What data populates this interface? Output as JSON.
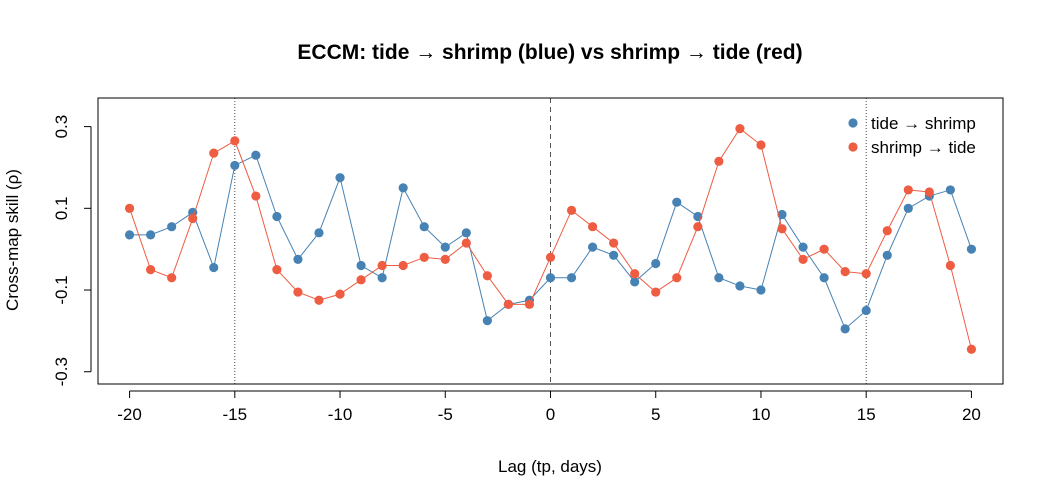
{
  "chart_data": {
    "type": "line",
    "title": "ECCM: tide → shrimp (blue) vs shrimp → tide (red)",
    "xlabel": "Lag (tp, days)",
    "ylabel": "Cross-map skill (ρ)",
    "xlim": [
      -21.5,
      21.5
    ],
    "ylim": [
      -0.33,
      0.37
    ],
    "xticks": [
      -20,
      -15,
      -10,
      -5,
      0,
      5,
      10,
      15,
      20
    ],
    "xtick_labels": [
      "-20",
      "-15",
      "-10",
      "-5",
      "0",
      "5",
      "10",
      "15",
      "20"
    ],
    "yticks": [
      -0.3,
      -0.1,
      0.1,
      0.3
    ],
    "ytick_labels": [
      "-0.3",
      "-0.1",
      "0.1",
      "0.3"
    ],
    "grid": false,
    "legend_position": "top-right",
    "reference_lines": [
      {
        "x": -15,
        "style": "dotted"
      },
      {
        "x": 0,
        "style": "dashed"
      },
      {
        "x": 15,
        "style": "dotted"
      }
    ],
    "x": [
      -20,
      -19,
      -18,
      -17,
      -16,
      -15,
      -14,
      -13,
      -12,
      -11,
      -10,
      -9,
      -8,
      -7,
      -6,
      -5,
      -4,
      -3,
      -2,
      -1,
      0,
      1,
      2,
      3,
      4,
      5,
      6,
      7,
      8,
      9,
      10,
      11,
      12,
      13,
      14,
      15,
      16,
      17,
      18,
      19,
      20
    ],
    "series": [
      {
        "name": "tide → shrimp",
        "color": "#4682B4",
        "values": [
          0.035,
          0.035,
          0.055,
          0.09,
          -0.045,
          0.205,
          0.23,
          0.08,
          -0.025,
          0.04,
          0.175,
          -0.04,
          -0.07,
          0.15,
          0.055,
          0.005,
          0.04,
          -0.175,
          -0.135,
          -0.125,
          -0.07,
          -0.07,
          0.005,
          -0.015,
          -0.08,
          -0.035,
          0.115,
          0.08,
          -0.07,
          -0.09,
          -0.1,
          0.085,
          0.005,
          -0.07,
          -0.195,
          -0.15,
          -0.015,
          0.1,
          0.13,
          0.145,
          0.0
        ]
      },
      {
        "name": "shrimp → tide",
        "color": "#EE5C42",
        "values": [
          0.1,
          -0.05,
          -0.07,
          0.075,
          0.235,
          0.265,
          0.13,
          -0.05,
          -0.105,
          -0.125,
          -0.11,
          -0.075,
          -0.04,
          -0.04,
          -0.02,
          -0.025,
          0.015,
          -0.065,
          -0.135,
          -0.135,
          -0.02,
          0.095,
          0.055,
          0.015,
          -0.06,
          -0.105,
          -0.07,
          0.055,
          0.215,
          0.295,
          0.255,
          0.05,
          -0.025,
          0.0,
          -0.055,
          -0.06,
          0.045,
          0.145,
          0.14,
          -0.04,
          -0.245
        ]
      }
    ]
  }
}
